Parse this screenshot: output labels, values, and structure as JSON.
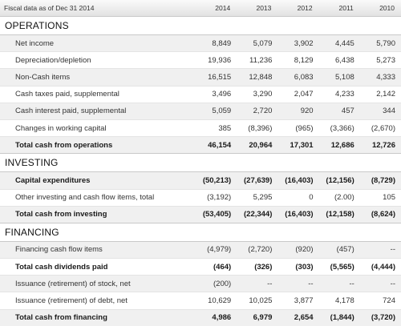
{
  "header": {
    "label": "Fiscal data as of Dec 31 2014",
    "years": [
      "2014",
      "2013",
      "2012",
      "2011",
      "2010"
    ]
  },
  "sections": [
    {
      "title": "OPERATIONS",
      "rows": [
        {
          "label": "Net income",
          "values": [
            "8,849",
            "5,079",
            "3,902",
            "4,445",
            "5,790"
          ],
          "bold": false
        },
        {
          "label": "Depreciation/depletion",
          "values": [
            "19,936",
            "11,236",
            "8,129",
            "6,438",
            "5,273"
          ],
          "bold": false
        },
        {
          "label": "Non-Cash items",
          "values": [
            "16,515",
            "12,848",
            "6,083",
            "5,108",
            "4,333"
          ],
          "bold": false
        },
        {
          "label": "Cash taxes paid, supplemental",
          "values": [
            "3,496",
            "3,290",
            "2,047",
            "4,233",
            "2,142"
          ],
          "bold": false
        },
        {
          "label": "Cash interest paid, supplemental",
          "values": [
            "5,059",
            "2,720",
            "920",
            "457",
            "344"
          ],
          "bold": false
        },
        {
          "label": "Changes in working capital",
          "values": [
            "385",
            "(8,396)",
            "(965)",
            "(3,366)",
            "(2,670)"
          ],
          "bold": false
        },
        {
          "label": "Total cash from operations",
          "values": [
            "46,154",
            "20,964",
            "17,301",
            "12,686",
            "12,726"
          ],
          "bold": true
        }
      ]
    },
    {
      "title": "INVESTING",
      "rows": [
        {
          "label": "Capital expenditures",
          "values": [
            "(50,213)",
            "(27,639)",
            "(16,403)",
            "(12,156)",
            "(8,729)"
          ],
          "bold": true
        },
        {
          "label": "Other investing and cash flow items, total",
          "values": [
            "(3,192)",
            "5,295",
            "0",
            "(2.00)",
            "105"
          ],
          "bold": false
        },
        {
          "label": "Total cash from investing",
          "values": [
            "(53,405)",
            "(22,344)",
            "(16,403)",
            "(12,158)",
            "(8,624)"
          ],
          "bold": true
        }
      ]
    },
    {
      "title": "FINANCING",
      "rows": [
        {
          "label": "Financing cash flow items",
          "values": [
            "(4,979)",
            "(2,720)",
            "(920)",
            "(457)",
            "--"
          ],
          "bold": false
        },
        {
          "label": "Total cash dividends paid",
          "values": [
            "(464)",
            "(326)",
            "(303)",
            "(5,565)",
            "(4,444)"
          ],
          "bold": true
        },
        {
          "label": "Issuance (retirement) of stock, net",
          "values": [
            "(200)",
            "--",
            "--",
            "--",
            "--"
          ],
          "bold": false
        },
        {
          "label": "Issuance (retirement) of debt, net",
          "values": [
            "10,629",
            "10,025",
            "3,877",
            "4,178",
            "724"
          ],
          "bold": false
        },
        {
          "label": "Total cash from financing",
          "values": [
            "4,986",
            "6,979",
            "2,654",
            "(1,844)",
            "(3,720)"
          ],
          "bold": true
        }
      ]
    }
  ]
}
